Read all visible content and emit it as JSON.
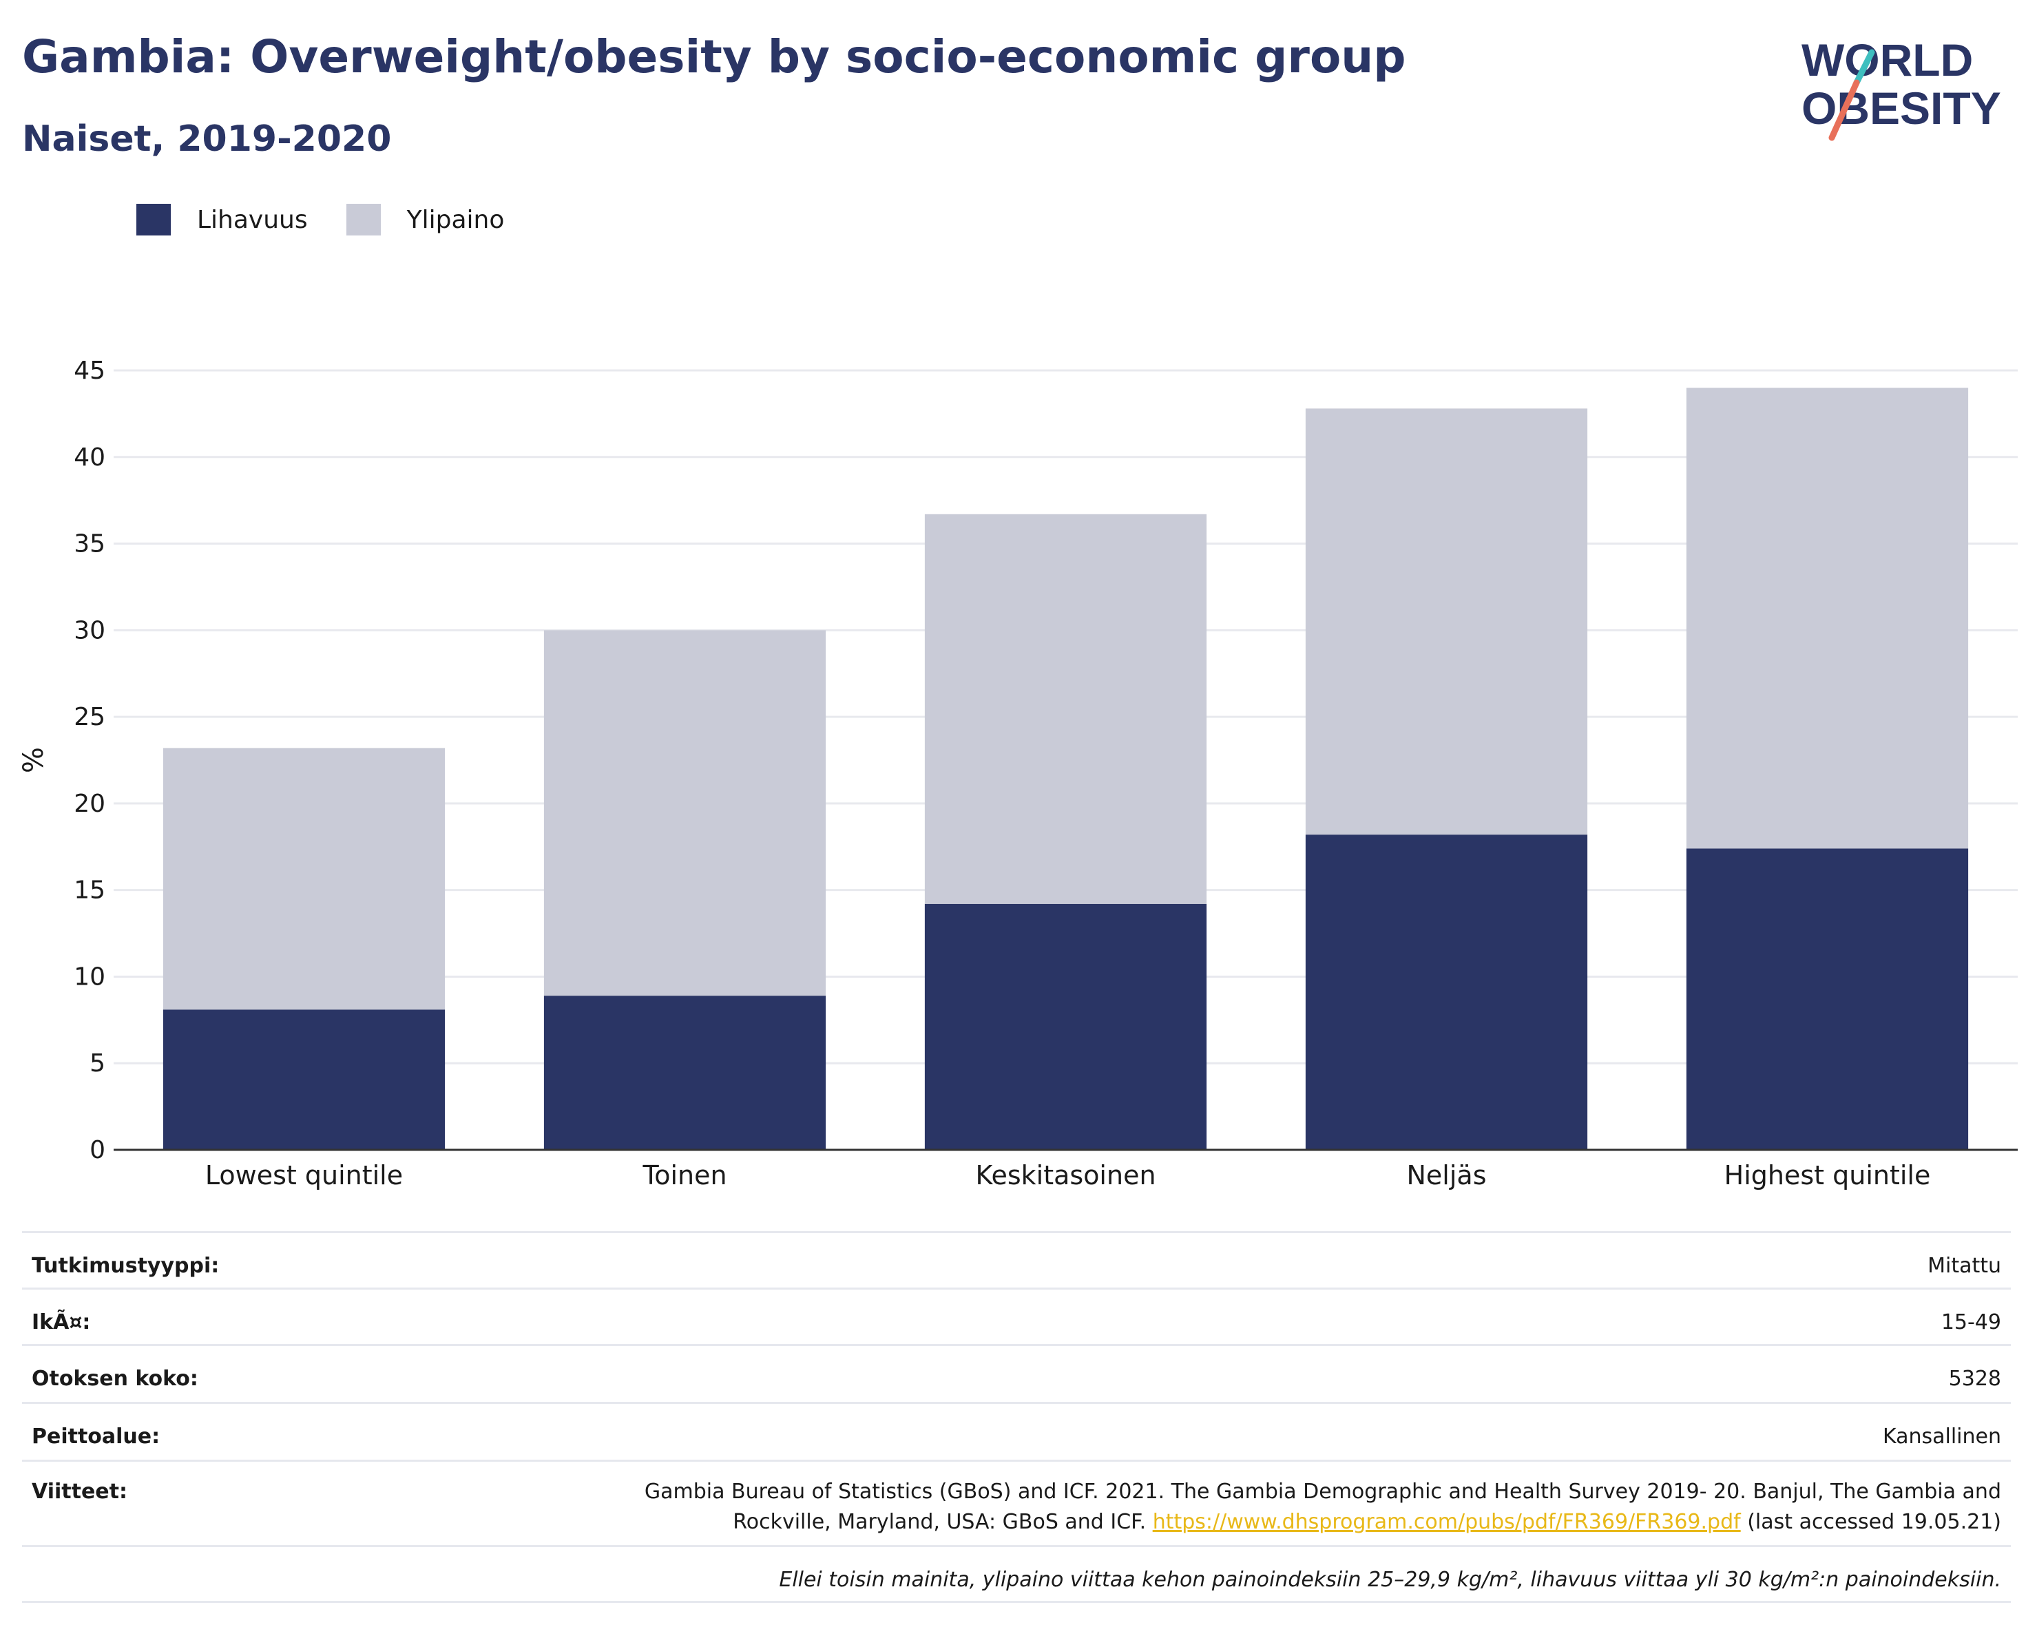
{
  "header": {
    "title": "Gambia: Overweight/obesity by socio-economic group",
    "subtitle": "Naiset, 2019-2020",
    "logo_line1": "WORLD",
    "logo_line2": "OBESITY"
  },
  "colors": {
    "obesity": "#2a3565",
    "overweight": "#c9cbd7",
    "title": "#2a3565",
    "link": "#e8b818",
    "logo_teal": "#3fbfbf",
    "logo_coral": "#e8705a"
  },
  "chart_data": {
    "type": "bar",
    "stacked": true,
    "categories": [
      "Lowest quintile",
      "Toinen",
      "Keskitasoinen",
      "Neljäs",
      "Highest quintile"
    ],
    "series": [
      {
        "name": "Lihavuus",
        "values": [
          8.1,
          8.9,
          14.2,
          18.2,
          17.4
        ]
      },
      {
        "name": "Ylipaino",
        "values": [
          15.1,
          21.1,
          22.5,
          24.6,
          26.6
        ]
      }
    ],
    "ylabel": "%",
    "ylim": [
      0,
      45
    ],
    "yticks": [
      0,
      5,
      10,
      15,
      20,
      25,
      30,
      35,
      40,
      45
    ],
    "grid": true,
    "legend_position": "top-left"
  },
  "meta": {
    "study_type_label": "Tutkimustyyppi:",
    "study_type_value": "Mitattu",
    "age_label": "IkÃ¤:",
    "age_value": "15-49",
    "sample_label": "Otoksen koko:",
    "sample_value": "5328",
    "coverage_label": "Peittoalue:",
    "coverage_value": "Kansallinen",
    "ref_label": "Viitteet:",
    "ref_text_1": "Gambia Bureau of Statistics (GBoS) and ICF. 2021. The Gambia Demographic and Health Survey 2019- 20. Banjul, The Gambia and",
    "ref_text_2": "Rockville, Maryland, USA: GBoS and ICF. ",
    "ref_link": "https://www.dhsprogram.com/pubs/pdf/FR369/FR369.pdf",
    "ref_text_3": " (last accessed 19.05.21)",
    "note": "Ellei toisin mainita, ylipaino viittaa kehon painoindeksiin 25–29,9 kg/m², lihavuus viittaa yli 30 kg/m²:n painoindeksiin."
  }
}
